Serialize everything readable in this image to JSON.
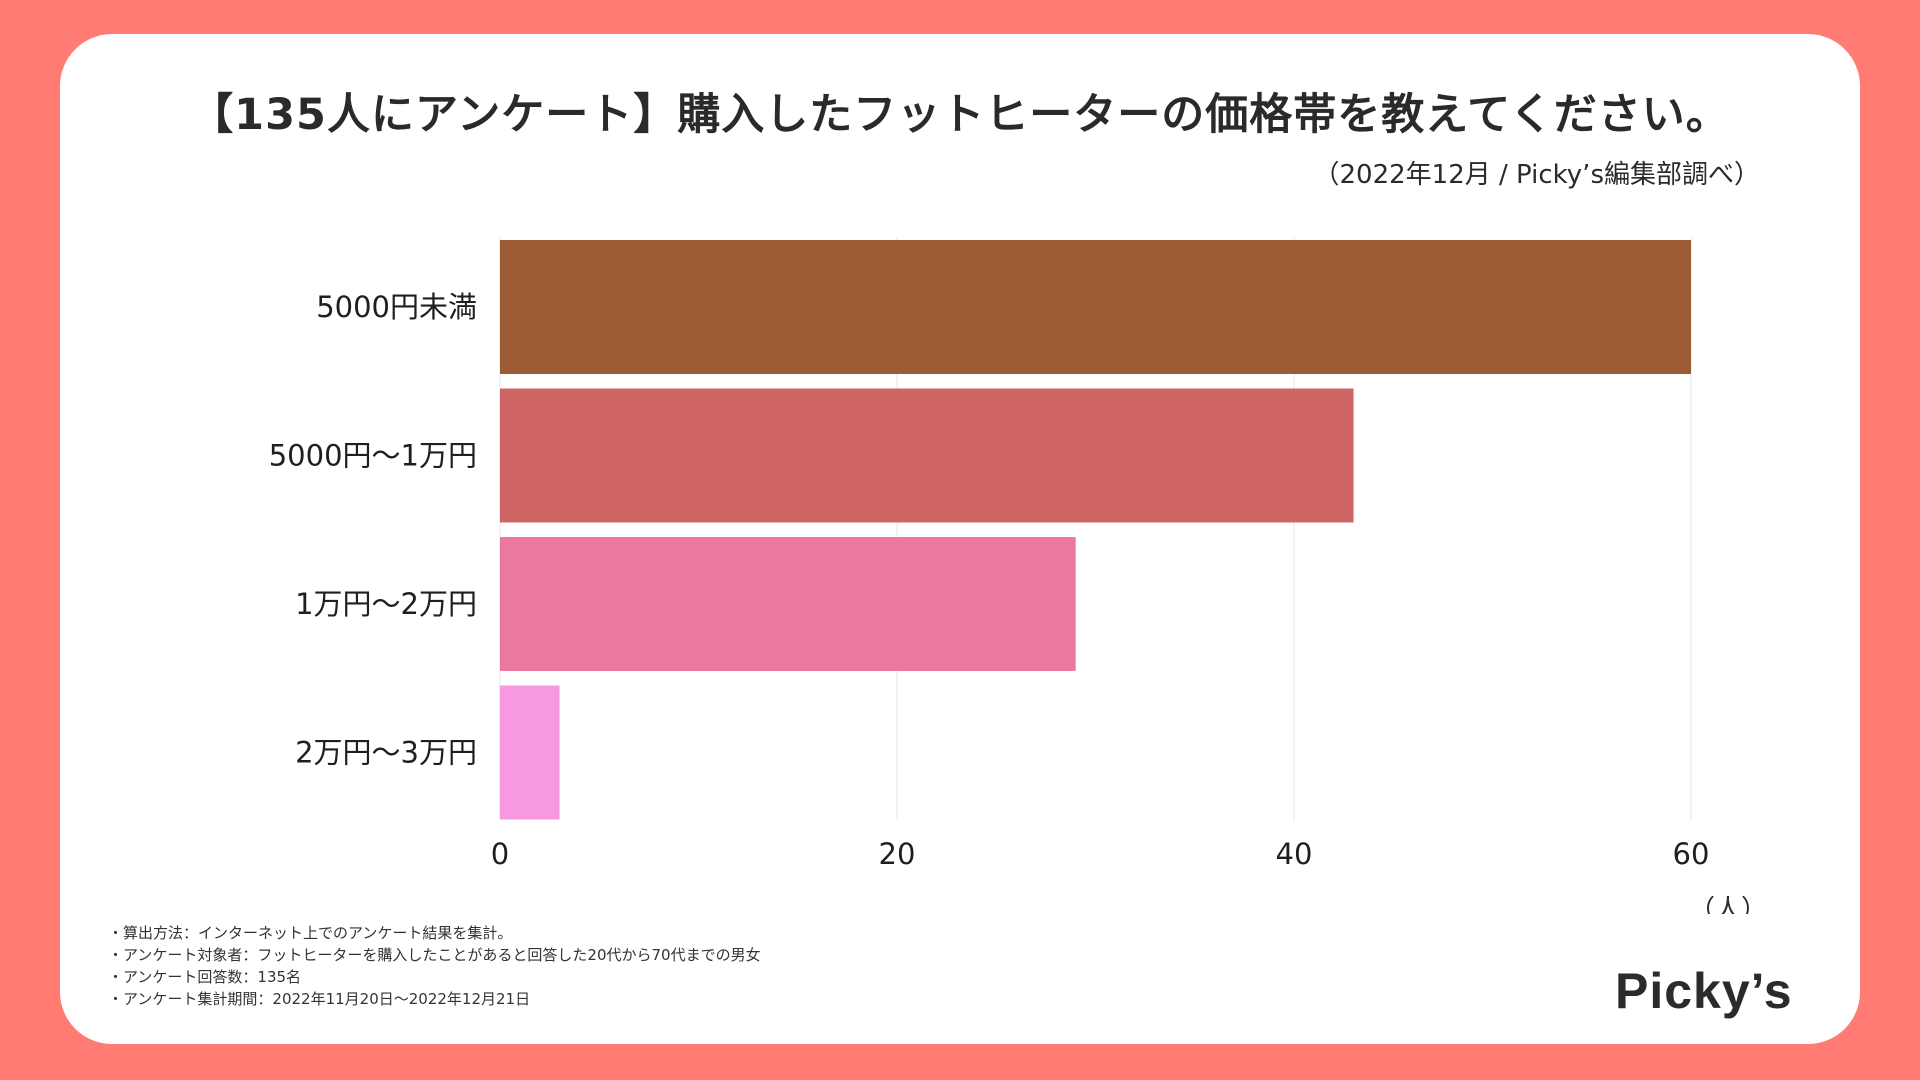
{
  "page": {
    "title": "【135人にアンケート】購入したフットヒーターの価格帯を教えてください。",
    "subtitle": "（2022年12月 / Picky’s編集部調べ）",
    "logo_text": "Picky’s"
  },
  "notes": [
    "・算出方法：インターネット上でのアンケート結果を集計。",
    "・アンケート対象者：フットヒーターを購入したことがあると回答した20代から70代までの男女",
    "・アンケート回答数：135名",
    "・アンケート集計期間：2022年11月20日〜2022年12月21日"
  ],
  "colors": {
    "background": "#ff7b74",
    "card": "#ffffff",
    "grid": "#e6e6e6"
  },
  "chart_data": {
    "type": "bar",
    "orientation": "horizontal",
    "categories": [
      "5000円未満",
      "5000円〜1万円",
      "1万円〜2万円",
      "2万円〜3万円"
    ],
    "values": [
      60,
      43,
      29,
      3
    ],
    "bar_colors": [
      "#9c5c33",
      "#cf6665",
      "#ec779f",
      "#f798e3"
    ],
    "xlim": [
      0,
      60
    ],
    "xticks": [
      0,
      20,
      40,
      60
    ],
    "unit_label": "（人）",
    "grid": true
  }
}
